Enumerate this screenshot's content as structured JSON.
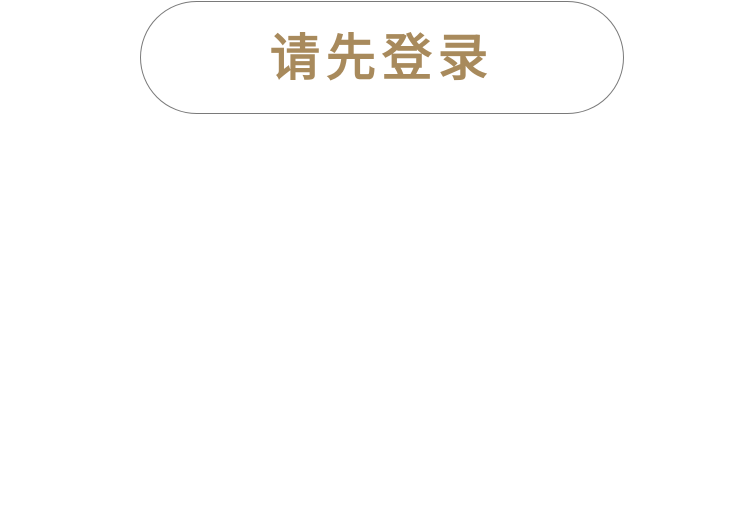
{
  "login_button": {
    "label": "请先登录"
  },
  "colors": {
    "accent": "#a88a5c",
    "border": "#7a7a7a",
    "background": "#ffffff"
  }
}
